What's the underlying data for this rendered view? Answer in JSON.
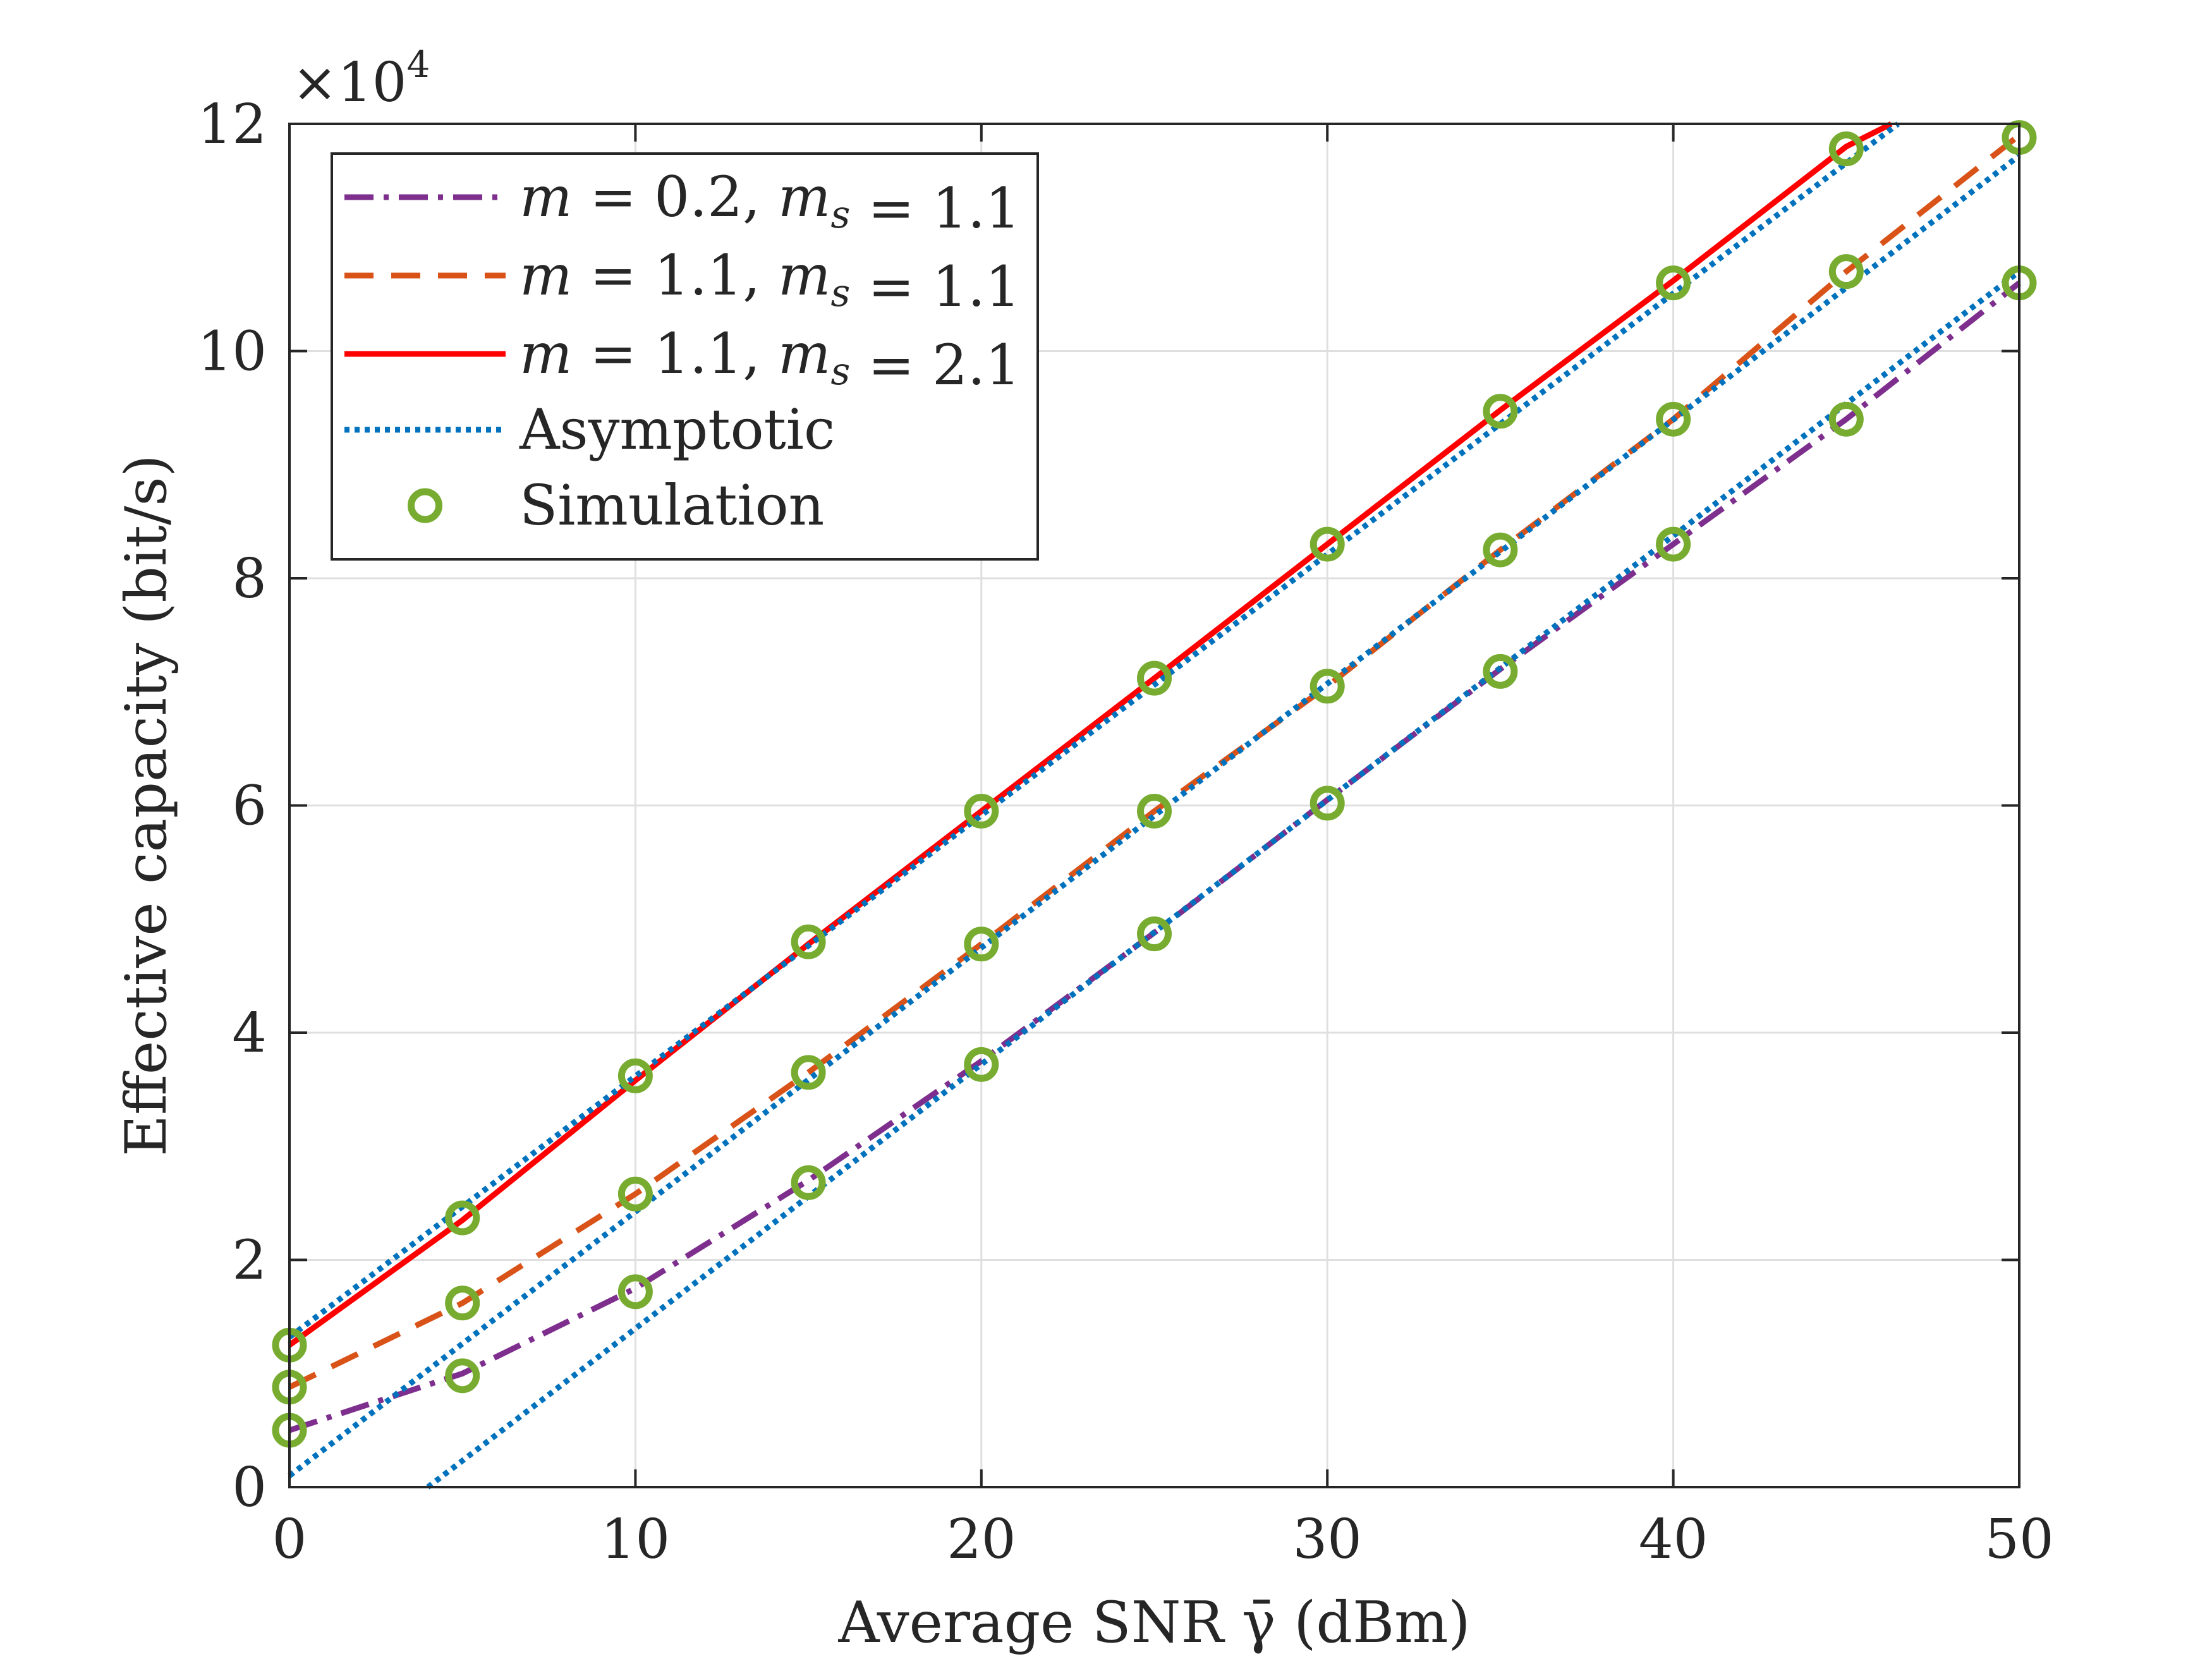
{
  "chart_data": {
    "type": "line",
    "title": "",
    "xlabel": "Average SNR γ̄ (dBm)",
    "ylabel": "Effective capacity (bit/s)",
    "xlim": [
      0,
      50
    ],
    "ylim": [
      0,
      12
    ],
    "y_multiplier_label": "×10",
    "y_multiplier_exponent": "4",
    "grid": true,
    "legend_position": "top-left",
    "x_ticks": [
      0,
      10,
      20,
      30,
      40,
      50
    ],
    "x_tick_labels": [
      "0",
      "10",
      "20",
      "30",
      "40",
      "50"
    ],
    "y_ticks": [
      0,
      2,
      4,
      6,
      8,
      10,
      12
    ],
    "y_tick_labels": [
      "0",
      "2",
      "4",
      "6",
      "8",
      "10",
      "12"
    ],
    "x": [
      0,
      5,
      10,
      15,
      20,
      25,
      30,
      35,
      40,
      45,
      50
    ],
    "series": [
      {
        "name": "m = 0.2, m_s = 1.1",
        "legend_parts": [
          "m",
          " = 0.2, ",
          "m",
          "s",
          " = 1.1"
        ],
        "style": "dashdot",
        "color": "#7E2F8E",
        "values": [
          0.5,
          1.0,
          1.75,
          2.7,
          3.75,
          4.88,
          6.05,
          7.2,
          8.3,
          9.4,
          10.6
        ]
      },
      {
        "name": "m = 1.1, m_s = 1.1",
        "legend_parts": [
          "m",
          " = 1.1, ",
          "m",
          "s",
          " = 1.1"
        ],
        "style": "dashed",
        "color": "#D95319",
        "values": [
          0.88,
          1.62,
          2.58,
          3.65,
          4.78,
          5.95,
          7.05,
          8.25,
          9.4,
          10.7,
          11.9
        ]
      },
      {
        "name": "m = 1.1, m_s = 2.1",
        "legend_parts": [
          "m",
          " = 1.1, ",
          "m",
          "s",
          " = 2.1"
        ],
        "style": "solid",
        "color": "#FF0000",
        "x": [
          0,
          5,
          10,
          15,
          20,
          25,
          30,
          35,
          40,
          45,
          46.3
        ],
        "values": [
          1.25,
          2.35,
          3.58,
          4.78,
          5.95,
          7.12,
          8.3,
          9.48,
          10.62,
          11.8,
          12.0
        ]
      },
      {
        "name": "Asymptotic",
        "style": "dotted",
        "color": "#0072BD",
        "lines": [
          {
            "x": [
              0,
              46.5
            ],
            "values": [
              1.32,
              12.0
            ]
          },
          {
            "x": [
              0,
              50
            ],
            "values": [
              0.1,
              11.72
            ]
          },
          {
            "x": [
              4,
              50
            ],
            "values": [
              0,
              10.7
            ]
          }
        ]
      },
      {
        "name": "Simulation",
        "style": "marker-circle",
        "color": "#77AC30",
        "points": [
          [
            0,
            0.5
          ],
          [
            5,
            0.98
          ],
          [
            10,
            1.72
          ],
          [
            15,
            2.68
          ],
          [
            20,
            3.72
          ],
          [
            25,
            4.87
          ],
          [
            30,
            6.02
          ],
          [
            35,
            7.18
          ],
          [
            40,
            8.3
          ],
          [
            45,
            9.4
          ],
          [
            50,
            10.6
          ],
          [
            0,
            0.88
          ],
          [
            5,
            1.62
          ],
          [
            10,
            2.58
          ],
          [
            15,
            3.65
          ],
          [
            20,
            4.78
          ],
          [
            25,
            5.95
          ],
          [
            30,
            7.05
          ],
          [
            35,
            8.25
          ],
          [
            40,
            9.4
          ],
          [
            45,
            10.7
          ],
          [
            50,
            11.88
          ],
          [
            0,
            1.25
          ],
          [
            5,
            2.37
          ],
          [
            10,
            3.62
          ],
          [
            15,
            4.8
          ],
          [
            20,
            5.95
          ],
          [
            25,
            7.12
          ],
          [
            30,
            8.3
          ],
          [
            35,
            9.47
          ],
          [
            40,
            10.6
          ],
          [
            45,
            11.78
          ]
        ]
      }
    ]
  },
  "legend": {
    "asymptotic_label": "Asymptotic",
    "simulation_label": "Simulation"
  }
}
